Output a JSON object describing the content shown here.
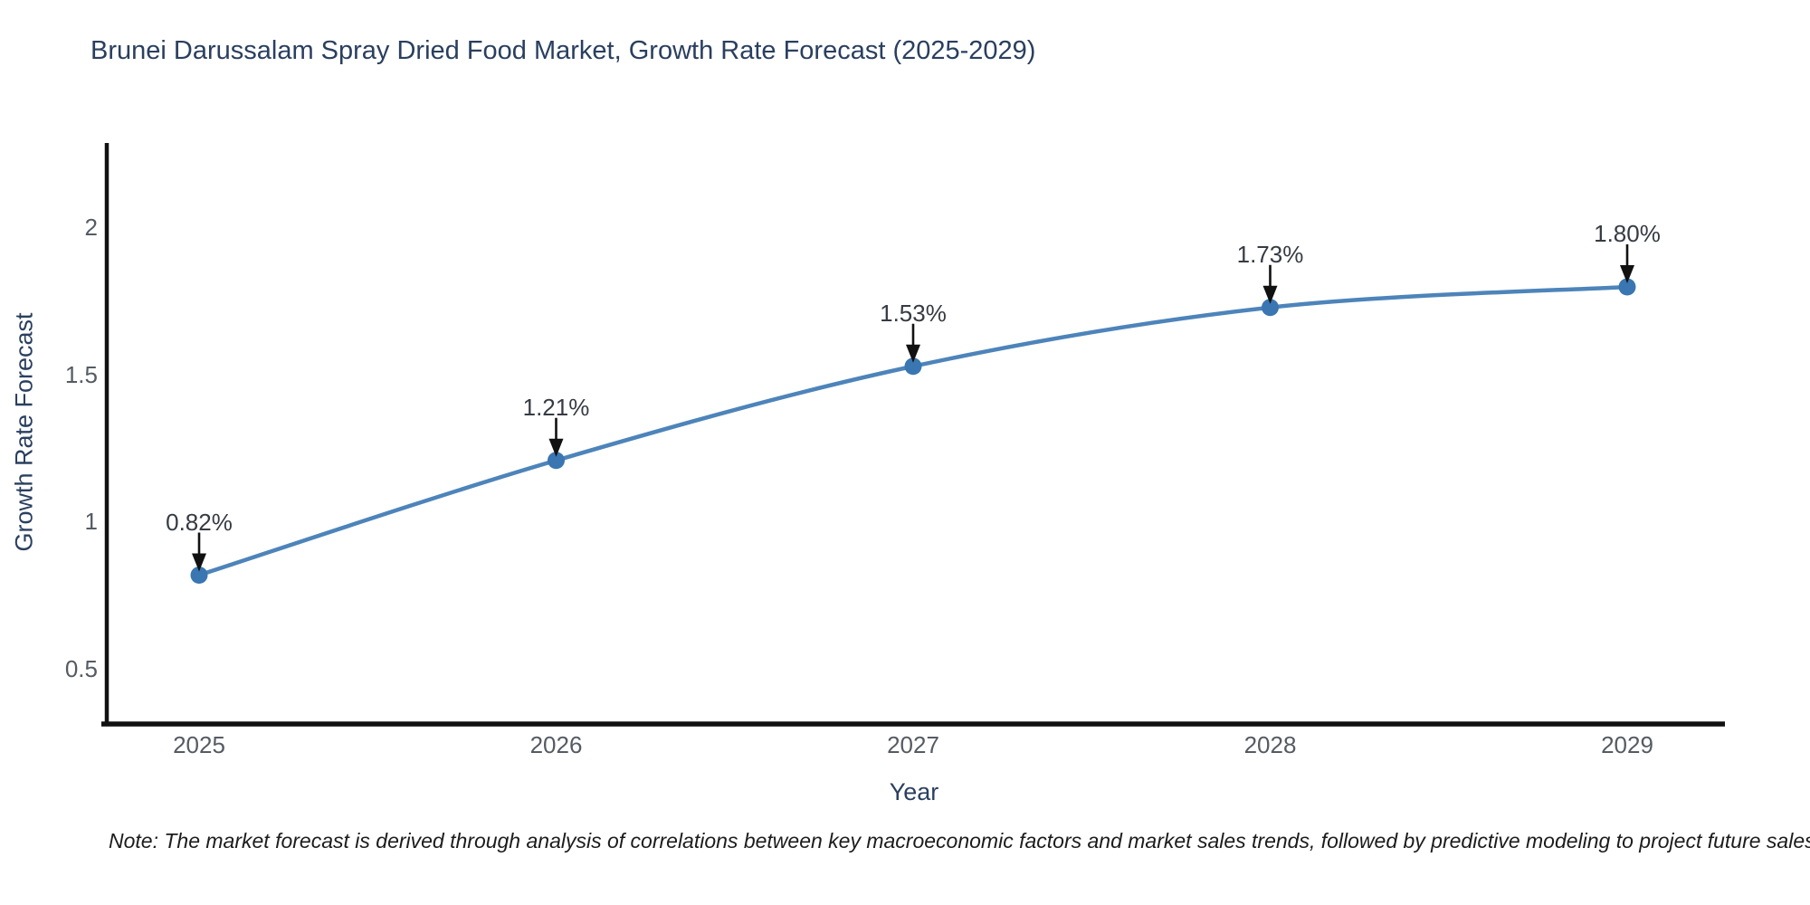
{
  "title": "Brunei Darussalam Spray Dried Food Market, Growth Rate Forecast (2025-2029)",
  "note": "Note: The market forecast is derived through analysis of correlations between key macroeconomic factors and market sales trends, followed by predictive modeling to project future sales",
  "chart_data": {
    "type": "line",
    "title": "Brunei Darussalam Spray Dried Food Market, Growth Rate Forecast (2025-2029)",
    "xlabel": "Year",
    "ylabel": "Growth Rate Forecast",
    "categories": [
      "2025",
      "2026",
      "2027",
      "2028",
      "2029"
    ],
    "values": [
      0.82,
      1.21,
      1.53,
      1.73,
      1.8
    ],
    "point_labels": [
      "0.82%",
      "1.21%",
      "1.53%",
      "1.73%",
      "1.80%"
    ],
    "yticks": [
      0.5,
      1,
      1.5,
      2
    ],
    "ylim": [
      0.31,
      2.29
    ],
    "grid": false,
    "legend": "none",
    "line_shape": "spline",
    "colors": {
      "line": "#4d84ba",
      "marker": "#3a76b1",
      "axis": "#111111",
      "arrow": "#111111",
      "title_text": "#2a3f5f",
      "tick_text": "#555b63"
    }
  }
}
